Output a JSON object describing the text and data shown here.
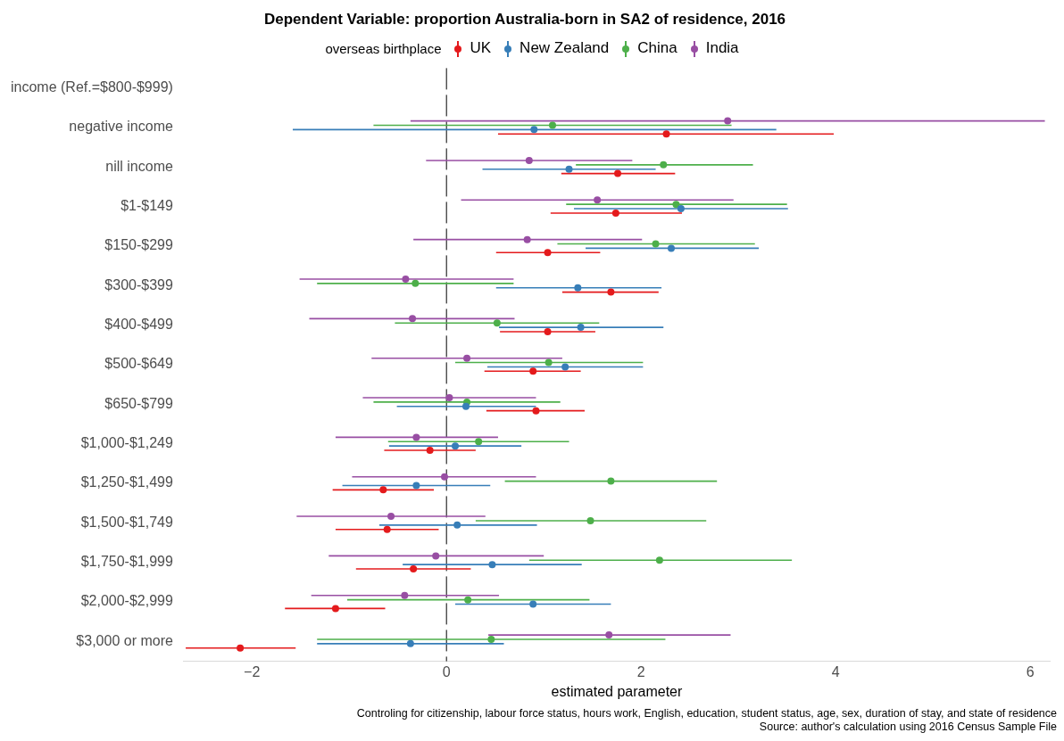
{
  "chart_data": {
    "type": "scatter",
    "orientation": "horizontal",
    "title": "Dependent Variable: proportion Australia-born in SA2 of residence, 2016",
    "xlabel": "estimated parameter",
    "legend_title": "overseas birthplace",
    "legend": "top",
    "grid": false,
    "marker": "circle",
    "categories": [
      "income (Ref.=$800-$999)",
      "negative income",
      "nill income",
      "$1-$149",
      "$150-$299",
      "$300-$399",
      "$400-$499",
      "$500-$649",
      "$650-$799",
      "$1,000-$1,249",
      "$1,250-$1,499",
      "$1,500-$1,749",
      "$1,750-$1,999",
      "$2,000-$2,999",
      "$3,000 or more"
    ],
    "xlim": [
      -2.7,
      6.2
    ],
    "xticks": [
      -2,
      0,
      2,
      4,
      6
    ],
    "ref_lines": [
      {
        "axis": "x",
        "value": 0,
        "color": "#000000",
        "line_style": "dashed"
      }
    ],
    "series": [
      {
        "name": "UK",
        "color": "#e41a1c",
        "values": [
          null,
          2.26,
          1.76,
          1.74,
          1.04,
          1.69,
          1.04,
          0.89,
          0.92,
          -0.17,
          -0.65,
          -0.61,
          -0.34,
          -1.14,
          -2.12
        ],
        "errors": [
          null,
          [
            0.53,
            3.98
          ],
          [
            1.18,
            2.35
          ],
          [
            1.07,
            2.42
          ],
          [
            0.51,
            1.58
          ],
          [
            1.19,
            2.18
          ],
          [
            0.55,
            1.53
          ],
          [
            0.39,
            1.38
          ],
          [
            0.41,
            1.42
          ],
          [
            -0.64,
            0.3
          ],
          [
            -1.17,
            -0.13
          ],
          [
            -1.14,
            -0.08
          ],
          [
            -0.93,
            0.25
          ],
          [
            -1.66,
            -0.63
          ],
          [
            -2.68,
            -1.55
          ]
        ]
      },
      {
        "name": "New Zealand",
        "color": "#377eb8",
        "values": [
          null,
          0.9,
          1.26,
          2.41,
          2.31,
          1.35,
          1.38,
          1.22,
          0.2,
          0.09,
          -0.31,
          0.11,
          0.47,
          0.89,
          -0.37
        ],
        "errors": [
          null,
          [
            -1.58,
            3.39
          ],
          [
            0.37,
            2.15
          ],
          [
            1.31,
            3.51
          ],
          [
            1.43,
            3.21
          ],
          [
            0.51,
            2.21
          ],
          [
            0.54,
            2.23
          ],
          [
            0.42,
            2.02
          ],
          [
            -0.51,
            0.92
          ],
          [
            -0.59,
            0.77
          ],
          [
            -1.07,
            0.45
          ],
          [
            -0.69,
            0.93
          ],
          [
            -0.45,
            1.39
          ],
          [
            0.09,
            1.69
          ],
          [
            -1.33,
            0.59
          ]
        ]
      },
      {
        "name": "China",
        "color": "#4daf4a",
        "values": [
          null,
          1.09,
          2.23,
          2.36,
          2.15,
          -0.32,
          0.52,
          1.05,
          0.21,
          0.33,
          1.69,
          1.48,
          2.19,
          0.22,
          0.46
        ],
        "errors": [
          null,
          [
            -0.75,
            2.93
          ],
          [
            1.33,
            3.15
          ],
          [
            1.23,
            3.5
          ],
          [
            1.14,
            3.17
          ],
          [
            -1.33,
            0.69
          ],
          [
            -0.53,
            1.57
          ],
          [
            0.09,
            2.02
          ],
          [
            -0.75,
            1.17
          ],
          [
            -0.6,
            1.26
          ],
          [
            0.6,
            2.78
          ],
          [
            0.3,
            2.67
          ],
          [
            0.85,
            3.55
          ],
          [
            -1.02,
            1.47
          ],
          [
            -1.33,
            2.25
          ]
        ]
      },
      {
        "name": "India",
        "color": "#984ea3",
        "values": [
          null,
          2.89,
          0.85,
          1.55,
          0.83,
          -0.42,
          -0.35,
          0.21,
          0.03,
          -0.31,
          -0.02,
          -0.57,
          -0.11,
          -0.43,
          1.67
        ],
        "errors": [
          null,
          [
            -0.37,
            6.15
          ],
          [
            -0.21,
            1.91
          ],
          [
            0.15,
            2.95
          ],
          [
            -0.34,
            2.01
          ],
          [
            -1.51,
            0.69
          ],
          [
            -1.41,
            0.7
          ],
          [
            -0.77,
            1.19
          ],
          [
            -0.86,
            0.92
          ],
          [
            -1.14,
            0.53
          ],
          [
            -0.97,
            0.92
          ],
          [
            -1.54,
            0.4
          ],
          [
            -1.21,
            1.0
          ],
          [
            -1.39,
            0.54
          ],
          [
            0.43,
            2.92
          ]
        ]
      }
    ],
    "annotations": [
      "Controling for citizenship, labour force status, hours work, English, education, student status, age, sex, duration of stay, and state of residence",
      "Source: author's calculation using 2016 Census Sample File"
    ]
  }
}
